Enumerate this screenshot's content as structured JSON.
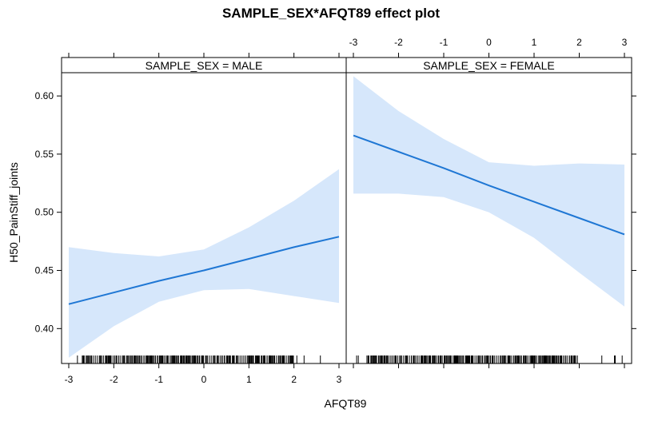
{
  "chart_data": {
    "type": "line",
    "title": "SAMPLE_SEX*AFQT89 effect plot",
    "xlabel": "AFQT89",
    "ylabel": "H50_PainStiff_joints",
    "xlim": [
      -3,
      3
    ],
    "ylim": [
      0.37,
      0.62
    ],
    "x_ticks": [
      -3,
      -2,
      -1,
      0,
      1,
      2,
      3
    ],
    "x_tick_labels": [
      "-3",
      "-2",
      "-1",
      "0",
      "1",
      "2",
      "3"
    ],
    "y_ticks": [
      0.4,
      0.45,
      0.5,
      0.55,
      0.6
    ],
    "y_tick_labels": [
      "0.40",
      "0.45",
      "0.50",
      "0.55",
      "0.60"
    ],
    "line_color": "#1f77d4",
    "band_color": "#d6e7fb",
    "panels": [
      {
        "strip": "SAMPLE_SEX = MALE",
        "x": [
          -3,
          -2,
          -1,
          0,
          1,
          2,
          3
        ],
        "fit": [
          0.421,
          0.431,
          0.441,
          0.45,
          0.46,
          0.47,
          0.479
        ],
        "lower": [
          0.375,
          0.402,
          0.423,
          0.433,
          0.434,
          0.428,
          0.422
        ],
        "upper": [
          0.47,
          0.465,
          0.462,
          0.468,
          0.487,
          0.51,
          0.537
        ]
      },
      {
        "strip": "SAMPLE_SEX = FEMALE",
        "x": [
          -3,
          -2,
          -1,
          0,
          1,
          2,
          3
        ],
        "fit": [
          0.566,
          0.552,
          0.538,
          0.523,
          0.509,
          0.495,
          0.481
        ],
        "lower": [
          0.516,
          0.516,
          0.513,
          0.5,
          0.478,
          0.448,
          0.419
        ],
        "upper": [
          0.617,
          0.587,
          0.563,
          0.543,
          0.54,
          0.542,
          0.541
        ]
      }
    ]
  }
}
